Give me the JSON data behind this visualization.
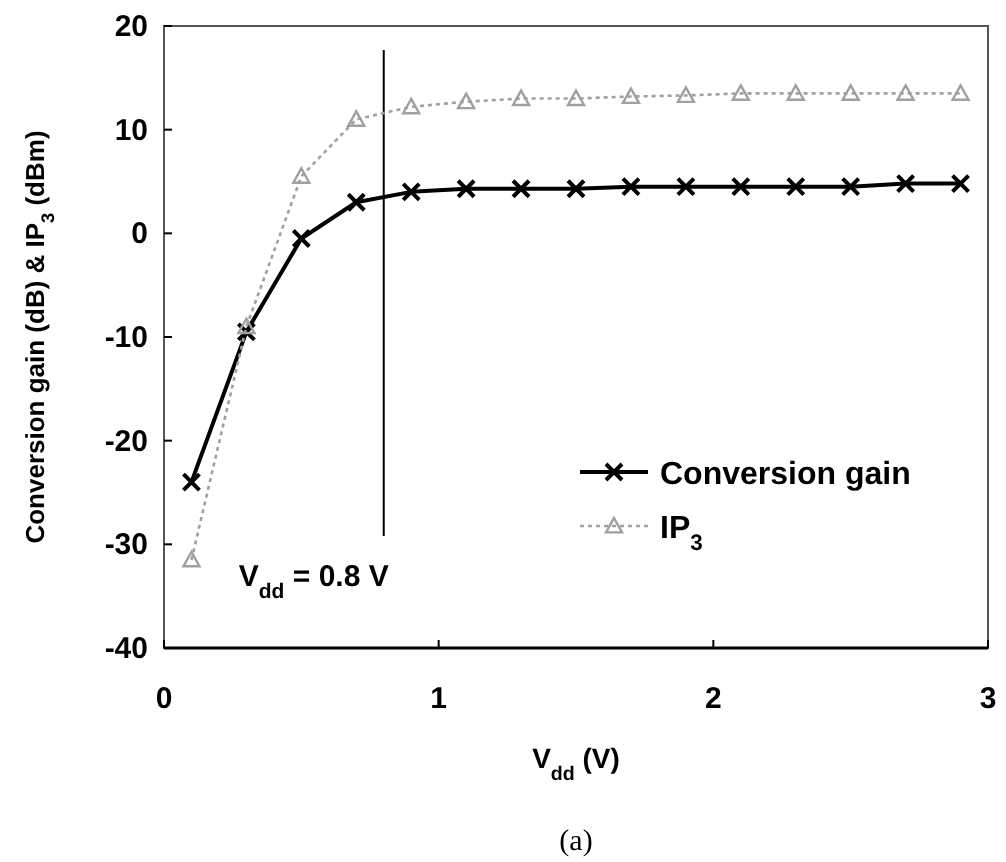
{
  "chart_data": {
    "type": "line",
    "xlabel": "V$_{dd}$ (V)",
    "ylabel": "Conversion gain (dB) & IP$_{3}$ (dBm)",
    "x": [
      0.1,
      0.3,
      0.5,
      0.7,
      0.9,
      1.1,
      1.3,
      1.5,
      1.7,
      1.9,
      2.1,
      2.3,
      2.5,
      2.7,
      2.9
    ],
    "series": [
      {
        "name": "Conversion gain",
        "color": "#000000",
        "marker": "cross",
        "line_style": "solid",
        "values": [
          -24,
          -9.5,
          -0.5,
          3,
          4,
          4.3,
          4.3,
          4.3,
          4.5,
          4.5,
          4.5,
          4.5,
          4.5,
          4.8,
          4.8
        ]
      },
      {
        "name": "IP$_{3}$",
        "color": "#a0a0a0",
        "marker": "triangle",
        "line_style": "dotted",
        "values": [
          -31.5,
          -9,
          5.5,
          11,
          12.2,
          12.7,
          13,
          13,
          13.2,
          13.3,
          13.5,
          13.5,
          13.5,
          13.5,
          13.5
        ]
      }
    ],
    "xlim": [
      0,
      3
    ],
    "xticks": [
      0,
      1,
      2,
      3
    ],
    "ylim": [
      -40,
      20
    ],
    "yticks": [
      -40,
      -30,
      -20,
      -10,
      0,
      10,
      20
    ],
    "ref_lines": [
      {
        "axis": "x",
        "value": 0.8,
        "label": "V$_{dd}$ = 0.8 V",
        "color": "#000000"
      }
    ],
    "annotations": [
      "(a)"
    ],
    "grid": false,
    "legend": "right"
  }
}
